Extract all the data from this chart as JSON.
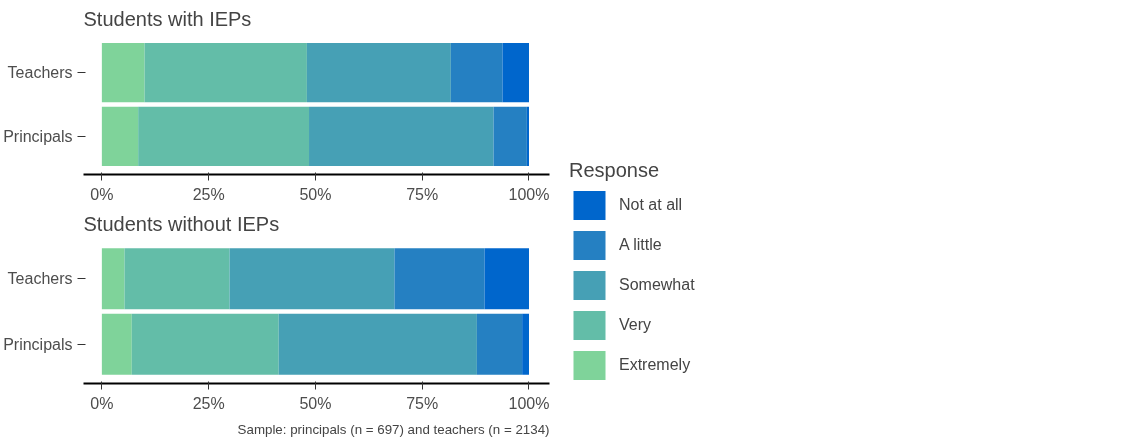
{
  "chart_data": [
    {
      "type": "bar",
      "orientation": "horizontal",
      "stacked": true,
      "title": "Students with IEPs",
      "categories": [
        "Teachers",
        "Principals"
      ],
      "grid": false,
      "xlim": [
        -0.043,
        1.048
      ],
      "xticks": [
        {
          "value": 0,
          "label": "0%"
        },
        {
          "value": 0.25,
          "label": "25%"
        },
        {
          "value": 0.5,
          "label": "50%"
        },
        {
          "value": 0.75,
          "label": "75%"
        },
        {
          "value": 1,
          "label": "100%"
        }
      ],
      "series": [
        {
          "color": "#7fd39a",
          "values": [
            0.1,
            0.085
          ]
        },
        {
          "color": "#63bda8",
          "values": [
            0.38,
            0.4
          ]
        },
        {
          "color": "#46a0b5",
          "values": [
            0.337,
            0.432
          ]
        },
        {
          "color": "#2580c2",
          "values": [
            0.121,
            0.078
          ]
        },
        {
          "color": "#0066cc",
          "values": [
            0.062,
            0.005
          ]
        }
      ]
    },
    {
      "type": "bar",
      "orientation": "horizontal",
      "stacked": true,
      "title": "Students without IEPs",
      "categories": [
        "Teachers",
        "Principals"
      ],
      "grid": false,
      "legend_title": "Response",
      "legend": "right",
      "annotations": [
        "Sample: principals (n = 697) and teachers (n = 2134)"
      ],
      "xlim": [
        -0.043,
        1.048
      ],
      "xticks": [
        {
          "value": 0,
          "label": "0%"
        },
        {
          "value": 0.25,
          "label": "25%"
        },
        {
          "value": 0.5,
          "label": "50%"
        },
        {
          "value": 0.75,
          "label": "75%"
        },
        {
          "value": 1,
          "label": "100%"
        }
      ],
      "series": [
        {
          "name": "Extremely",
          "color": "#7fd39a",
          "values": [
            0.053,
            0.07
          ]
        },
        {
          "name": "Very",
          "color": "#63bda8",
          "values": [
            0.246,
            0.344
          ]
        },
        {
          "name": "Somewhat",
          "color": "#46a0b5",
          "values": [
            0.386,
            0.464
          ]
        },
        {
          "name": "A little",
          "color": "#2580c2",
          "values": [
            0.211,
            0.106
          ]
        },
        {
          "name": "Not at all",
          "color": "#0066cc",
          "values": [
            0.104,
            0.016
          ]
        }
      ]
    }
  ]
}
